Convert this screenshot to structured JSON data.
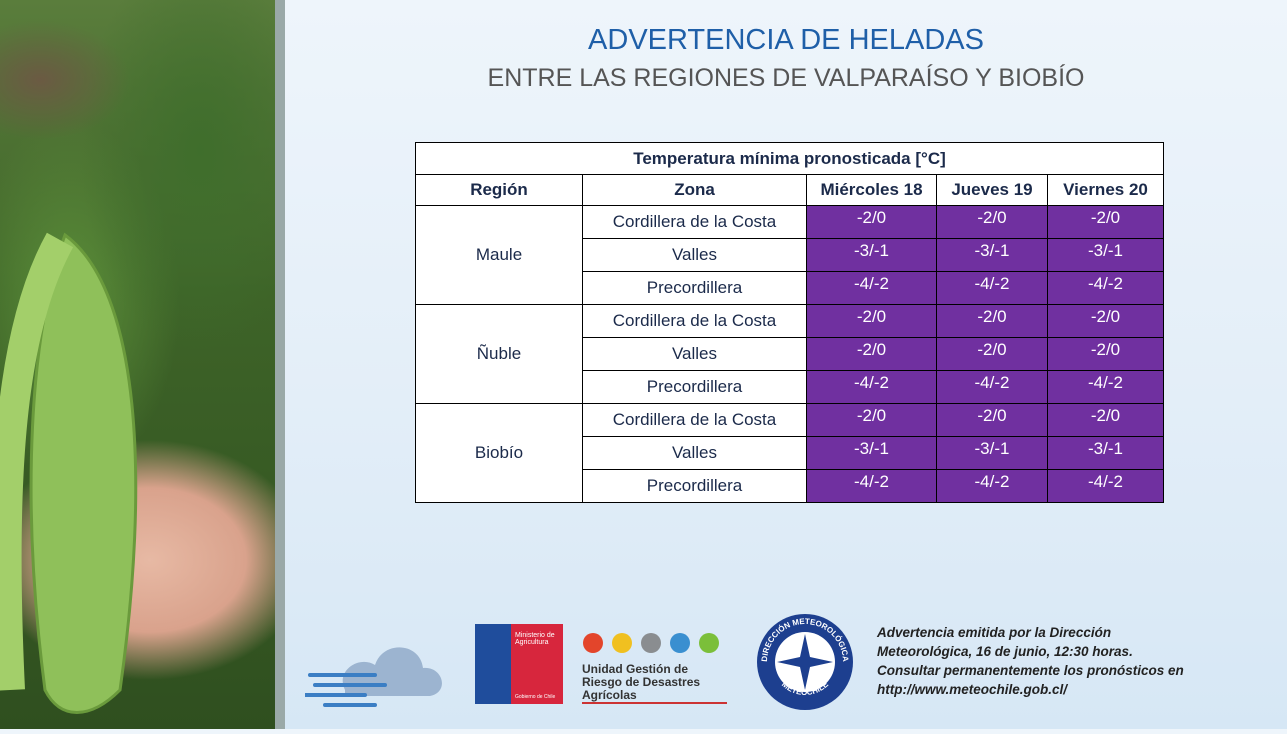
{
  "header": {
    "title": "ADVERTENCIA DE HELADAS",
    "subtitle": "ENTRE LAS REGIONES DE VALPARAÍSO Y BIOBÍO"
  },
  "table": {
    "caption": "Temperatura mínima pronosticada [°C]",
    "columns": [
      "Región",
      "Zona",
      "Miércoles 18",
      "Jueves 19",
      "Viernes 20"
    ],
    "groups": [
      {
        "region": "Maule",
        "zones": [
          {
            "zone": "Cordillera de la Costa",
            "values": [
              "-2/0",
              "-2/0",
              "-2/0"
            ]
          },
          {
            "zone": "Valles",
            "values": [
              "-3/-1",
              "-3/-1",
              "-3/-1"
            ]
          },
          {
            "zone": "Precordillera",
            "values": [
              "-4/-2",
              "-4/-2",
              "-4/-2"
            ]
          }
        ]
      },
      {
        "region": "Ñuble",
        "zones": [
          {
            "zone": "Cordillera de la Costa",
            "values": [
              "-2/0",
              "-2/0",
              "-2/0"
            ]
          },
          {
            "zone": "Valles",
            "values": [
              "-2/0",
              "-2/0",
              "-2/0"
            ]
          },
          {
            "zone": "Precordillera",
            "values": [
              "-4/-2",
              "-4/-2",
              "-4/-2"
            ]
          }
        ]
      },
      {
        "region": "Biobío",
        "zones": [
          {
            "zone": "Cordillera de la Costa",
            "values": [
              "-2/0",
              "-2/0",
              "-2/0"
            ]
          },
          {
            "zone": "Valles",
            "values": [
              "-3/-1",
              "-3/-1",
              "-3/-1"
            ]
          },
          {
            "zone": "Precordillera",
            "values": [
              "-4/-2",
              "-4/-2",
              "-4/-2"
            ]
          }
        ]
      }
    ]
  },
  "logos": {
    "ministry": "Ministerio de Agricultura",
    "government": "Gobierno de Chile",
    "unit": "Unidad Gestión de Riesgo de Desastres Agrícolas",
    "meteo_top": "DIRECCIÓN METEOROLÓGICA",
    "meteo_bottom": "METEOCHILE"
  },
  "footer": {
    "lines": [
      "Advertencia emitida por la Dirección",
      "Meteorológica, 16 de junio, 12:30 horas.",
      "Consultar permanentemente los pronósticos en",
      "http://www.meteochile.gob.cl/"
    ]
  }
}
